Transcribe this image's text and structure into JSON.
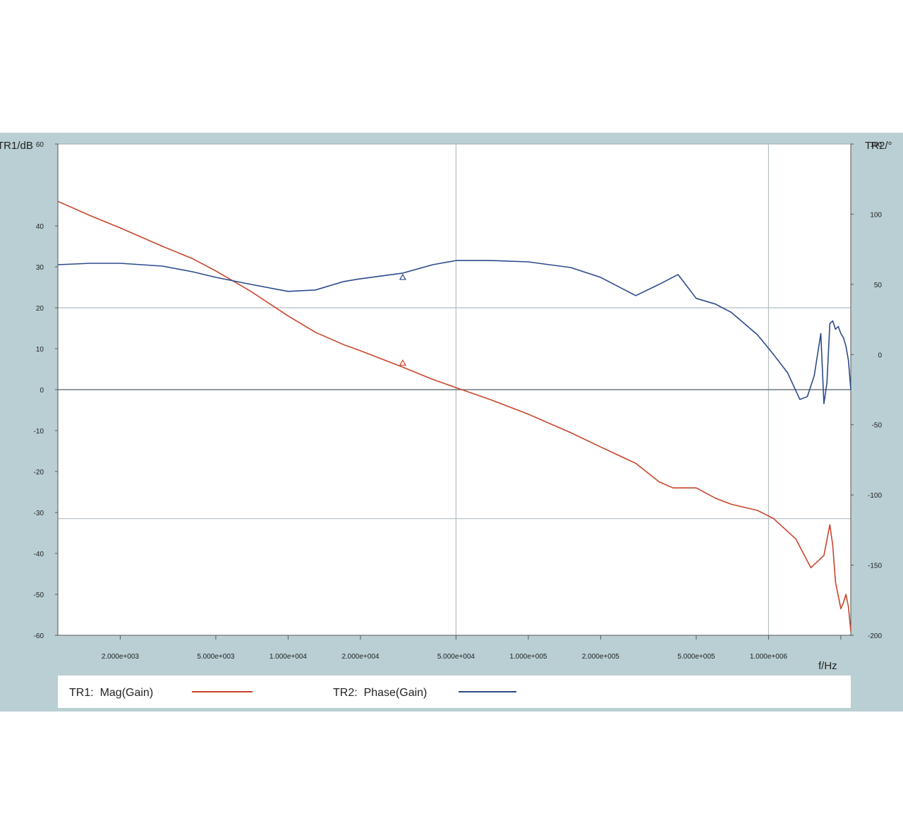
{
  "chart_data": {
    "type": "line",
    "title": "",
    "xlabel": "f/Hz",
    "ylabel_left": "TR1/dB",
    "ylabel_right": "TR2/°",
    "xscale": "log",
    "xlim": [
      1100,
      2200000
    ],
    "ylim_left": [
      -60,
      60
    ],
    "ylim_right": [
      -200,
      150
    ],
    "x_ticks": [
      {
        "value": 2000,
        "label": "2.000e+003"
      },
      {
        "value": 5000,
        "label": "5.000e+003"
      },
      {
        "value": 10000,
        "label": "1.000e+004"
      },
      {
        "value": 20000,
        "label": "2.000e+004"
      },
      {
        "value": 50000,
        "label": "5.000e+004"
      },
      {
        "value": 100000,
        "label": "1.000e+005"
      },
      {
        "value": 200000,
        "label": "2.000e+005"
      },
      {
        "value": 500000,
        "label": "5.000e+005"
      },
      {
        "value": 1000000,
        "label": "1.000e+006"
      }
    ],
    "y_ticks_left": [
      {
        "value": 60,
        "label": "60"
      },
      {
        "value": 40,
        "label": "40"
      },
      {
        "value": 30,
        "label": "30"
      },
      {
        "value": 20,
        "label": "20"
      },
      {
        "value": 10,
        "label": "10"
      },
      {
        "value": 0,
        "label": "0"
      },
      {
        "value": -10,
        "label": "-10"
      },
      {
        "value": -20,
        "label": "-20"
      },
      {
        "value": -30,
        "label": "-30"
      },
      {
        "value": -40,
        "label": "-40"
      },
      {
        "value": -50,
        "label": "-50"
      },
      {
        "value": -60,
        "label": "-60"
      }
    ],
    "y_ticks_right": [
      {
        "value": 150,
        "label": "150"
      },
      {
        "value": 100,
        "label": "100"
      },
      {
        "value": 50,
        "label": "50"
      },
      {
        "value": 0,
        "label": "0"
      },
      {
        "value": -50,
        "label": "-50"
      },
      {
        "value": -100,
        "label": "-100"
      },
      {
        "value": -150,
        "label": "-150"
      },
      {
        "value": -200,
        "label": "-200"
      }
    ],
    "grid_x": [
      50000,
      1000000
    ],
    "grid_y_left": [
      20,
      0,
      -31.5
    ],
    "legend": "bottom",
    "series": [
      {
        "name": "TR1:  Mag(Gain)",
        "axis": "left",
        "color": "#c8452c",
        "marker": {
          "x": 30000,
          "y": 6.5
        },
        "x": [
          1100,
          1500,
          2000,
          3000,
          4000,
          5000,
          7000,
          10000,
          13000,
          17000,
          20000,
          30000,
          40000,
          50000,
          70000,
          100000,
          150000,
          200000,
          280000,
          350000,
          400000,
          500000,
          600000,
          700000,
          900000,
          1050000,
          1300000,
          1500000,
          1700000,
          1800000,
          1850000,
          1900000,
          2000000,
          2050000,
          2100000,
          2150000,
          2200000
        ],
        "y": [
          46,
          42.5,
          39.5,
          35,
          32,
          29,
          24,
          18,
          14,
          11,
          9.5,
          5.5,
          2.5,
          0.5,
          -2.5,
          -6,
          -10.5,
          -14,
          -18,
          -22.5,
          -24,
          -24,
          -26.5,
          -28,
          -29.5,
          -31.5,
          -36.5,
          -43.5,
          -40.5,
          -33,
          -38,
          -47,
          -53.5,
          -52,
          -50,
          -53,
          -59
        ]
      },
      {
        "name": "TR2:  Phase(Gain)",
        "axis": "right",
        "color": "#2c4a8c",
        "marker": {
          "x": 30000,
          "y": 55
        },
        "x": [
          1100,
          1500,
          2000,
          3000,
          4000,
          5000,
          7000,
          10000,
          13000,
          17000,
          20000,
          30000,
          40000,
          50000,
          70000,
          100000,
          150000,
          200000,
          280000,
          350000,
          420000,
          500000,
          600000,
          700000,
          900000,
          1050000,
          1200000,
          1350000,
          1450000,
          1550000,
          1650000,
          1700000,
          1750000,
          1800000,
          1850000,
          1900000,
          1950000,
          2000000,
          2050000,
          2100000,
          2150000,
          2200000
        ],
        "y": [
          64,
          65,
          65,
          63,
          59,
          55,
          50,
          45,
          46,
          52,
          54,
          58,
          64,
          67,
          67,
          66,
          62,
          55,
          42,
          50,
          57,
          40,
          36,
          30,
          14,
          0,
          -13,
          -32,
          -30,
          -15,
          15,
          -35,
          -20,
          22,
          24,
          18,
          20,
          15,
          12,
          6,
          -4,
          -25
        ]
      }
    ]
  }
}
